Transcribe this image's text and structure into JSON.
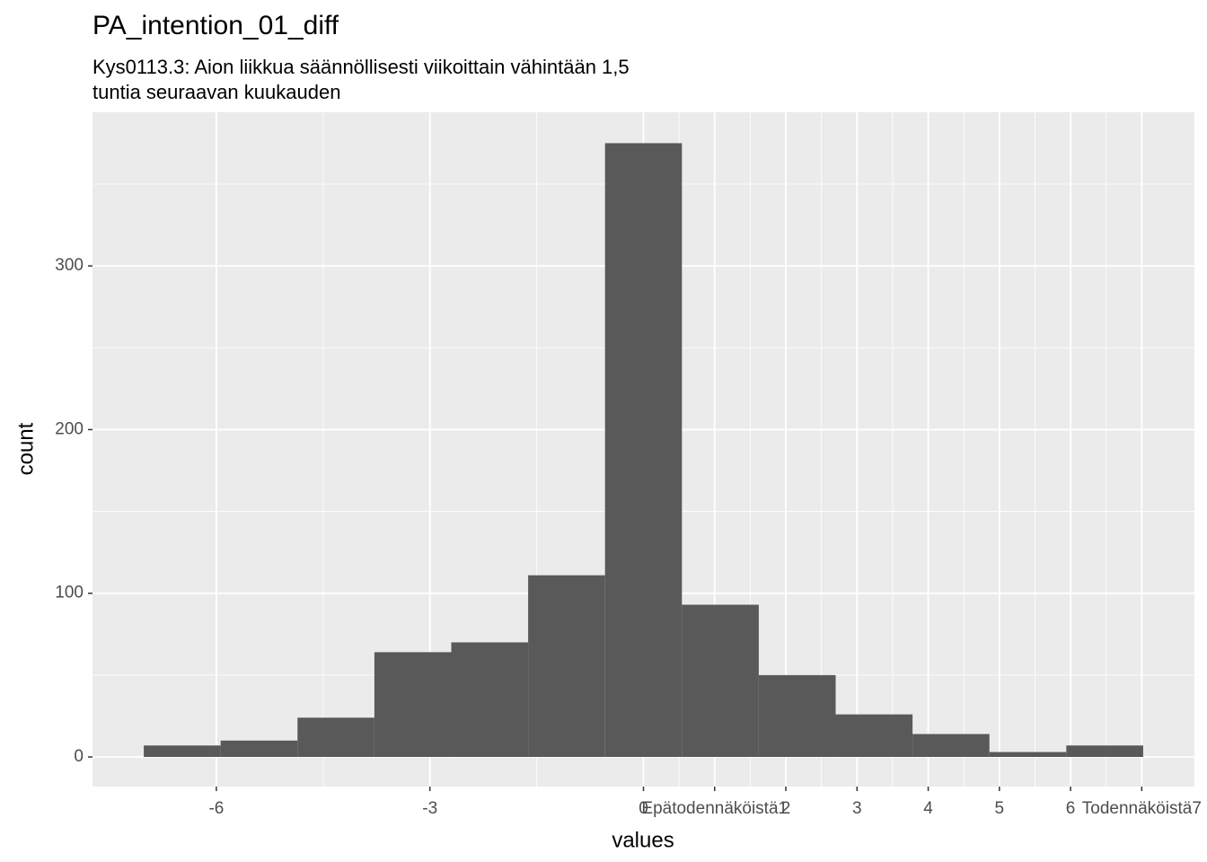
{
  "chart_data": {
    "type": "histogram",
    "title": "PA_intention_01_diff",
    "subtitle": [
      "Kys0113.3: Aion liikkua säännöllisesti viikoittain vähintään 1,5",
      "tuntia seuraavan kuukauden"
    ],
    "x_label": "values",
    "y_label": "count",
    "bins": [
      -7.02,
      -5.94,
      -4.86,
      -3.78,
      -2.7,
      -1.62,
      -0.54,
      0.54,
      1.62,
      2.7,
      3.78,
      4.86,
      5.94,
      7.02
    ],
    "values": [
      7,
      10,
      24,
      64,
      70,
      111,
      375,
      93,
      50,
      26,
      14,
      3,
      7
    ],
    "color": "#595959",
    "xlim": [
      -7.74,
      7.74
    ],
    "ylim": [
      -18.1,
      393.9
    ],
    "xticks": [
      -6,
      -3,
      0,
      {
        "value": 1,
        "label": "Epätodennäköistä1"
      },
      2,
      3,
      4,
      5,
      6,
      {
        "value": 7,
        "label": "Todennäköistä7"
      }
    ],
    "x_minor_ticks": [
      -4.5,
      -1.5,
      0.5,
      1.5,
      2.5,
      3.5,
      4.5,
      5.5,
      6.5
    ],
    "yticks": [
      0,
      100,
      200,
      300
    ],
    "y_minor_ticks": [
      50,
      150,
      250,
      350
    ],
    "grid": true
  }
}
